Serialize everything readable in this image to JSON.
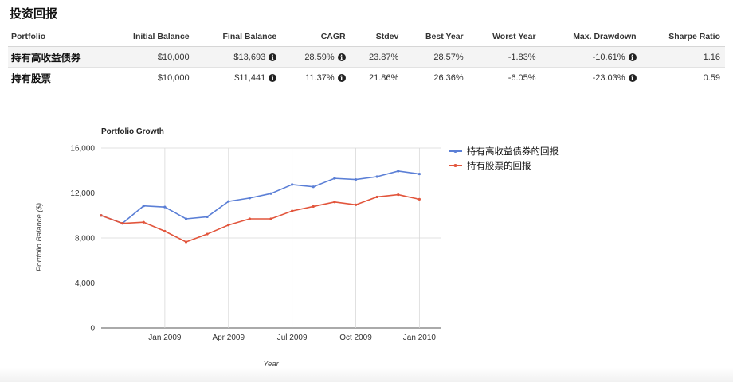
{
  "page": {
    "title": "投资回报"
  },
  "table": {
    "headers": [
      "Portfolio",
      "Initial Balance",
      "Final Balance",
      "CAGR",
      "Stdev",
      "Best Year",
      "Worst Year",
      "Max. Drawdown",
      "Sharpe Ratio"
    ],
    "rows": [
      {
        "name": "持有高收益债券",
        "initial": "$10,000",
        "final": "$13,693",
        "cagr": "28.59%",
        "stdev": "23.87%",
        "best": "28.57%",
        "worst": "-1.83%",
        "drawdown": "-10.61%",
        "sharpe": "1.16"
      },
      {
        "name": "持有股票",
        "initial": "$10,000",
        "final": "$11,441",
        "cagr": "11.37%",
        "stdev": "21.86%",
        "best": "26.36%",
        "worst": "-6.05%",
        "drawdown": "-23.03%",
        "sharpe": "0.59"
      }
    ],
    "info_glyph": "i"
  },
  "chart_data": {
    "type": "line",
    "title": "Portfolio Growth",
    "xlabel": "Year",
    "ylabel": "Portfolio Balance ($)",
    "x": [
      "2008-10",
      "2008-11",
      "2008-12",
      "2009-01",
      "2009-02",
      "2009-03",
      "2009-04",
      "2009-05",
      "2009-06",
      "2009-07",
      "2009-08",
      "2009-09",
      "2009-10",
      "2009-11",
      "2009-12",
      "2010-01",
      "2010-02"
    ],
    "x_ticks": [
      "Jan 2009",
      "Apr 2009",
      "Jul 2009",
      "Oct 2009",
      "Jan 2010"
    ],
    "y_ticks": [
      "0",
      "4,000",
      "8,000",
      "12,000",
      "16,000"
    ],
    "ylim": [
      0,
      16000
    ],
    "grid": true,
    "legend_position": "right",
    "series": [
      {
        "name": "持有高收益债券的回报",
        "color": "#5b7fd6",
        "values": [
          10000,
          9300,
          10850,
          10750,
          9700,
          9880,
          11250,
          11550,
          11950,
          12750,
          12550,
          13300,
          13200,
          13450,
          13950,
          13693,
          null
        ]
      },
      {
        "name": "持有股票的回报",
        "color": "#e2553c",
        "values": [
          10000,
          9300,
          9400,
          8600,
          7650,
          8350,
          9150,
          9700,
          9700,
          10400,
          10800,
          11200,
          10950,
          11650,
          11850,
          11441,
          null
        ]
      }
    ]
  }
}
